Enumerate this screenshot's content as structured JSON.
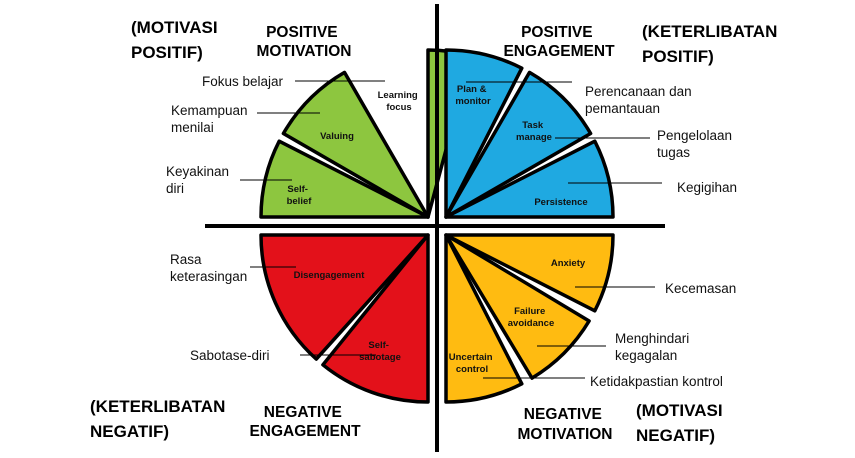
{
  "colors": {
    "positive_motivation": "#8dc63f",
    "positive_engagement": "#1fa9e1",
    "negative_engagement": "#e3111a",
    "negative_motivation": "#ffbb11",
    "outline": "#000000"
  },
  "quadrants": {
    "positive_motivation": {
      "title_line1": "POSITIVE",
      "title_line2": "MOTIVATION",
      "indo_line1": "(MOTIVASI",
      "indo_line2": "POSITIF)"
    },
    "positive_engagement": {
      "title_line1": "POSITIVE",
      "title_line2": "ENGAGEMENT",
      "indo_line1": "(KETERLIBATAN",
      "indo_line2": "POSITIF)"
    },
    "negative_engagement": {
      "title_line1": "NEGATIVE",
      "title_line2": "ENGAGEMENT",
      "indo_line1": "(KETERLIBATAN",
      "indo_line2": "NEGATIF)"
    },
    "negative_motivation": {
      "title_line1": "NEGATIVE",
      "title_line2": "MOTIVATION",
      "indo_line1": "(MOTIVASI",
      "indo_line2": "NEGATIF)"
    }
  },
  "segments": {
    "learning_focus": {
      "line1": "Learning",
      "line2": "focus"
    },
    "valuing": {
      "line1": "Valuing"
    },
    "self_belief": {
      "line1": "Self-",
      "line2": "belief"
    },
    "plan_monitor": {
      "line1": "Plan &",
      "line2": "monitor"
    },
    "task_manage": {
      "line1": "Task",
      "line2": "manage"
    },
    "persistence": {
      "line1": "Persistence"
    },
    "disengagement": {
      "line1": "Disengagement"
    },
    "self_sabotage": {
      "line1": "Self-",
      "line2": "sabotage"
    },
    "anxiety": {
      "line1": "Anxiety"
    },
    "failure_avoidance": {
      "line1": "Failure",
      "line2": "avoidance"
    },
    "uncertain_control": {
      "line1": "Uncertain",
      "line2": "control"
    }
  },
  "annotations": {
    "fokus_belajar": {
      "line1": "Fokus belajar"
    },
    "kemampuan_menilai": {
      "line1": "Kemampuan",
      "line2": "menilai"
    },
    "keyakinan_diri": {
      "line1": "Keyakinan",
      "line2": "diri"
    },
    "perencanaan": {
      "line1": "Perencanaan dan",
      "line2": "pemantauan"
    },
    "pengelolaan": {
      "line1": "Pengelolaan",
      "line2": "tugas"
    },
    "kegigihan": {
      "line1": "Kegigihan"
    },
    "rasa_keterasingan": {
      "line1": "Rasa",
      "line2": "keterasingan"
    },
    "sabotase_diri": {
      "line1": "Sabotase-diri"
    },
    "kecemasan": {
      "line1": "Kecemasan"
    },
    "menghindari_kegagalan": {
      "line1": "Menghindari",
      "line2": "kegagalan"
    },
    "ketidakpastian": {
      "line1": "Ketidakpastian kontrol"
    }
  }
}
